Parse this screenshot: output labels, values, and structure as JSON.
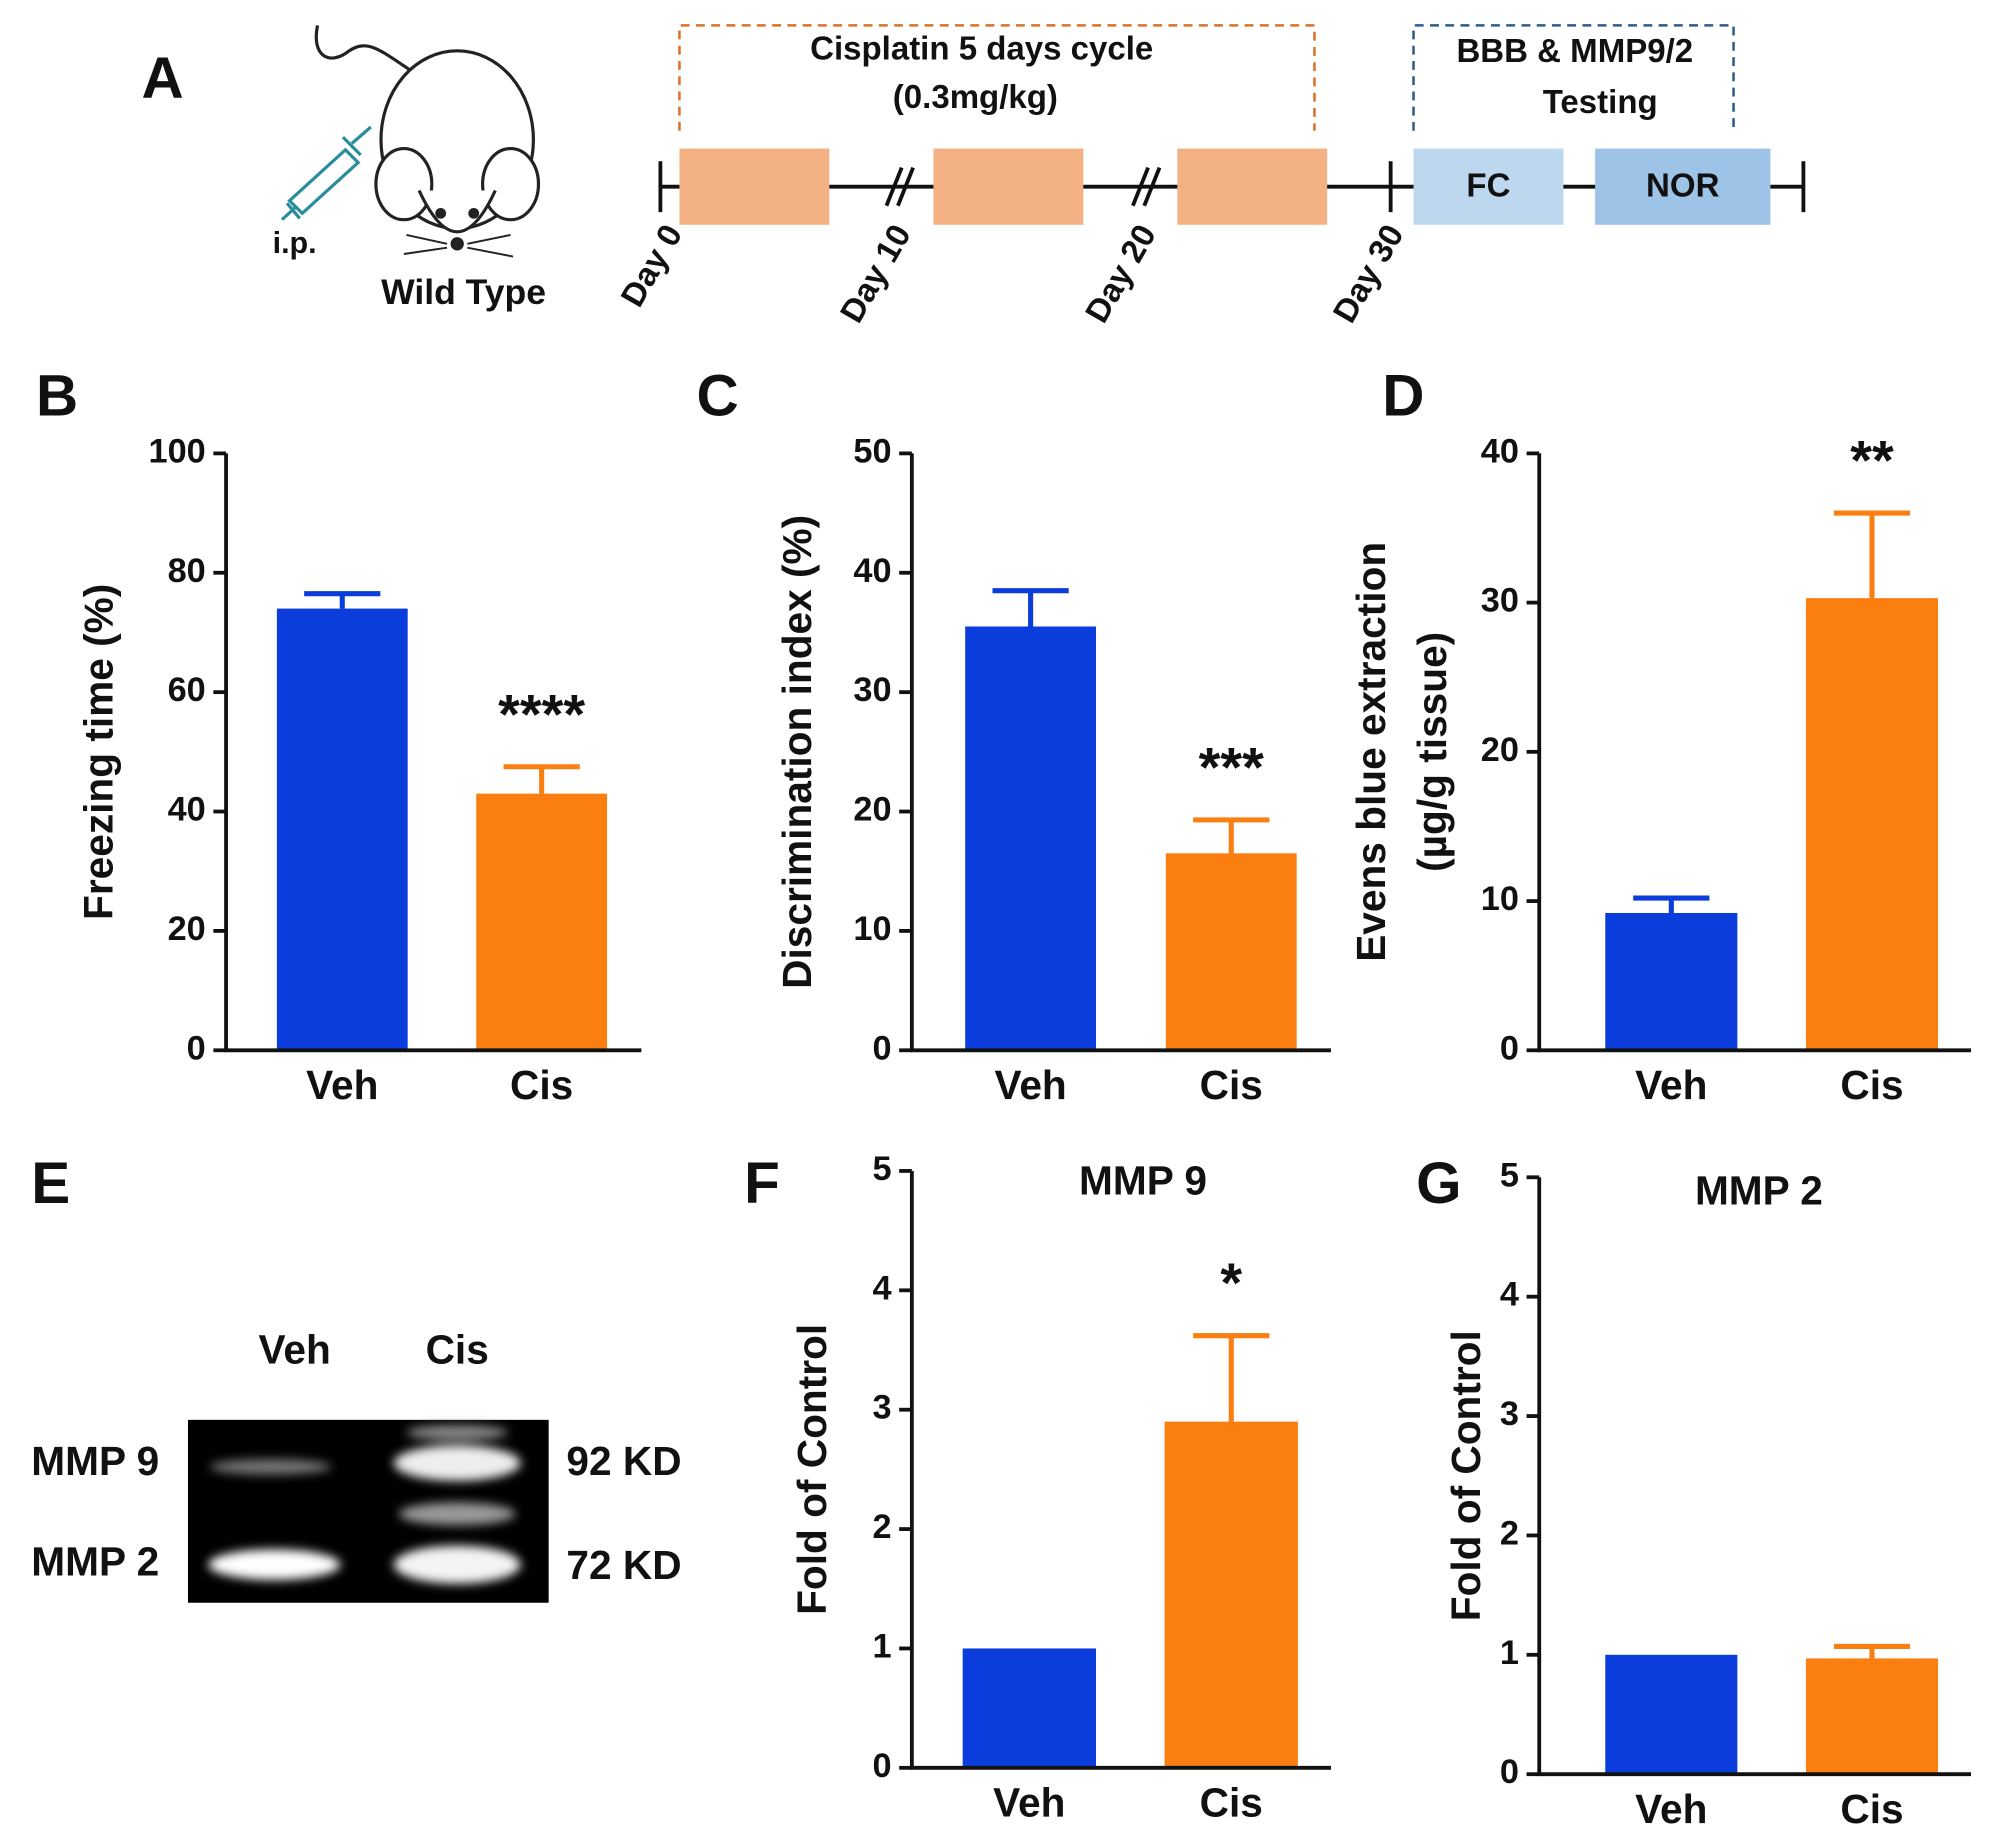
{
  "panel_a": {
    "label": "A",
    "route": "i.p.",
    "strain": "Wild Type",
    "treatment": [
      "Cisplatin 5 days cycle",
      "(0.3mg/kg)"
    ],
    "testing": [
      "BBB & MMP9/2",
      "Testing"
    ],
    "tests": [
      "FC",
      "NOR"
    ],
    "days": [
      "Day 0",
      "Day 10",
      "Day 20",
      "Day 30"
    ]
  },
  "panel_e": {
    "label": "E",
    "lanes": [
      "Veh",
      "Cis"
    ],
    "bands": [
      "MMP 9",
      "MMP 2"
    ],
    "sizes": [
      "92 KD",
      "72 KD"
    ]
  },
  "chart_data": [
    {
      "type": "bar",
      "panel": "B",
      "ylabel": [
        "Freezing time (%)"
      ],
      "categories": [
        "Veh",
        "Cis"
      ],
      "values": [
        74,
        43
      ],
      "errors": [
        2.5,
        4.5
      ],
      "colors": [
        "#0b3cdc",
        "#fa7e10"
      ],
      "significance": [
        null,
        "****"
      ],
      "ylim": [
        0,
        100
      ],
      "yticks": [
        0,
        20,
        40,
        60,
        80,
        100
      ]
    },
    {
      "type": "bar",
      "panel": "C",
      "ylabel": [
        "Discrimination index (%)"
      ],
      "categories": [
        "Veh",
        "Cis"
      ],
      "values": [
        35.5,
        16.5
      ],
      "errors": [
        3,
        2.8
      ],
      "colors": [
        "#0b3cdc",
        "#fa7e10"
      ],
      "significance": [
        null,
        "***"
      ],
      "ylim": [
        0,
        50
      ],
      "yticks": [
        0,
        10,
        20,
        30,
        40,
        50
      ]
    },
    {
      "type": "bar",
      "panel": "D",
      "ylabel": [
        "Evens blue extraction",
        "(µg/g tissue)"
      ],
      "categories": [
        "Veh",
        "Cis"
      ],
      "values": [
        9.2,
        30.3
      ],
      "errors": [
        1.0,
        5.7
      ],
      "colors": [
        "#0b3cdc",
        "#fa7e10"
      ],
      "significance": [
        null,
        "**"
      ],
      "ylim": [
        0,
        40
      ],
      "yticks": [
        0,
        10,
        20,
        30,
        40
      ]
    },
    {
      "type": "bar",
      "panel": "F",
      "title": "MMP 9",
      "ylabel": [
        "Fold of Control"
      ],
      "categories": [
        "Veh",
        "Cis"
      ],
      "values": [
        1,
        2.9
      ],
      "errors": [
        null,
        0.72
      ],
      "colors": [
        "#0b3cdc",
        "#fa7e10"
      ],
      "significance": [
        null,
        "*"
      ],
      "ylim": [
        0,
        5
      ],
      "yticks": [
        0,
        1,
        2,
        3,
        4,
        5
      ]
    },
    {
      "type": "bar",
      "panel": "G",
      "title": "MMP 2",
      "ylabel": [
        "Fold of Control"
      ],
      "categories": [
        "Veh",
        "Cis"
      ],
      "values": [
        1,
        0.97
      ],
      "errors": [
        null,
        0.1
      ],
      "colors": [
        "#0b3cdc",
        "#fa7e10"
      ],
      "significance": [
        null,
        null
      ],
      "ylim": [
        0,
        5
      ],
      "yticks": [
        0,
        1,
        2,
        3,
        4,
        5
      ]
    }
  ]
}
